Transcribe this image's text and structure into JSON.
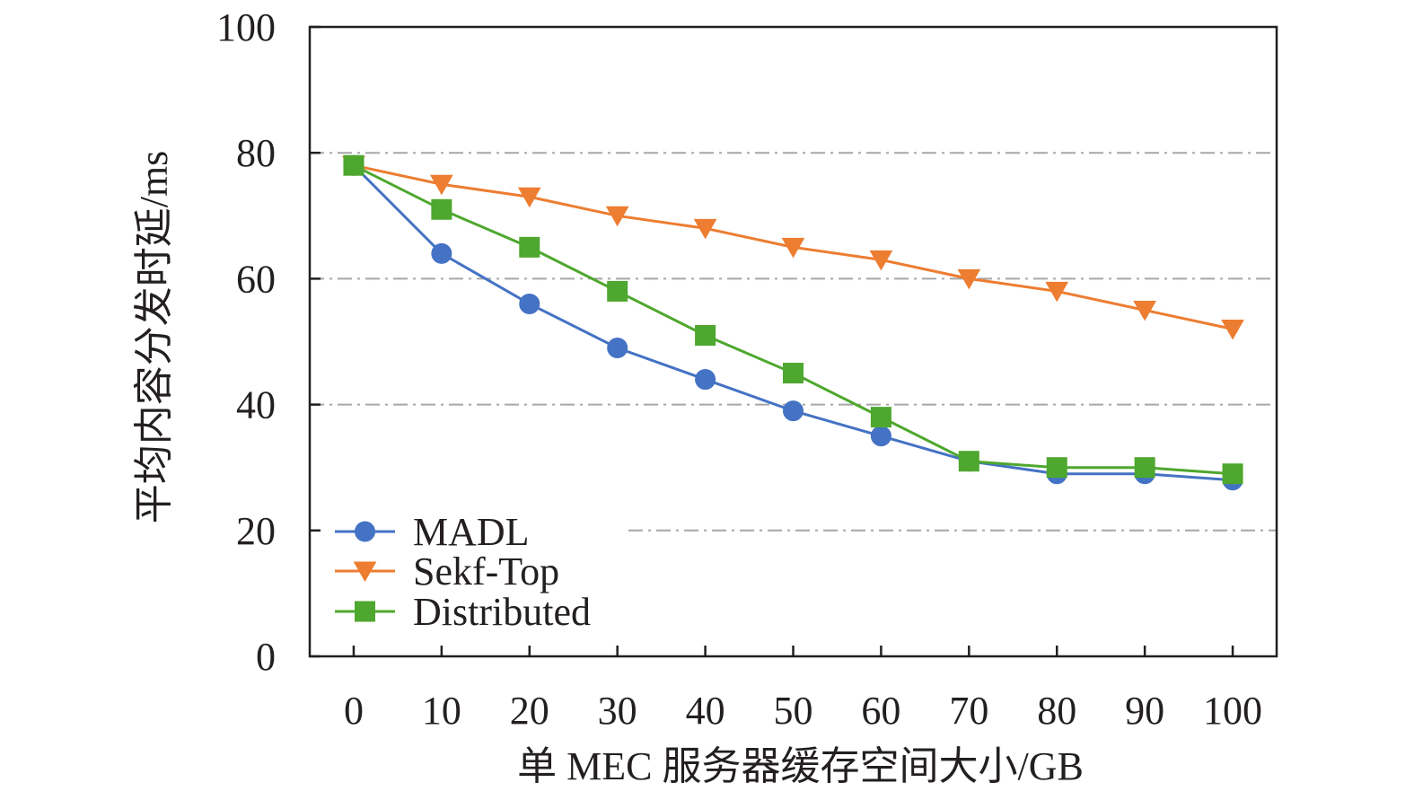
{
  "chart_data": {
    "type": "line",
    "x": [
      0,
      10,
      20,
      30,
      40,
      50,
      60,
      70,
      80,
      90,
      100
    ],
    "xticks": [
      "0",
      "10",
      "20",
      "30",
      "40",
      "50",
      "60",
      "70",
      "80",
      "90",
      "100"
    ],
    "yticks": [
      "0",
      "20",
      "40",
      "60",
      "80",
      "100"
    ],
    "xlim": [
      -5,
      105
    ],
    "ylim": [
      0,
      100
    ],
    "xlabel": "单 MEC 服务器缓存空间大小/GB",
    "ylabel": "平均内容分发时延/ms",
    "grid": "horizontal dash-dot",
    "legend_position": "lower-left",
    "series": [
      {
        "name": "MADL",
        "marker": "circle",
        "color": "#4472c4",
        "values": [
          78,
          64,
          56,
          49,
          44,
          39,
          35,
          31,
          29,
          29,
          28
        ]
      },
      {
        "name": "Sekf-Top",
        "marker": "triangle-down",
        "color": "#ed7d31",
        "values": [
          78,
          75,
          73,
          70,
          68,
          65,
          63,
          60,
          58,
          55,
          52
        ]
      },
      {
        "name": "Distributed",
        "marker": "square",
        "color": "#4ea72e",
        "values": [
          78,
          71,
          65,
          58,
          51,
          45,
          38,
          31,
          30,
          30,
          29
        ]
      }
    ]
  }
}
